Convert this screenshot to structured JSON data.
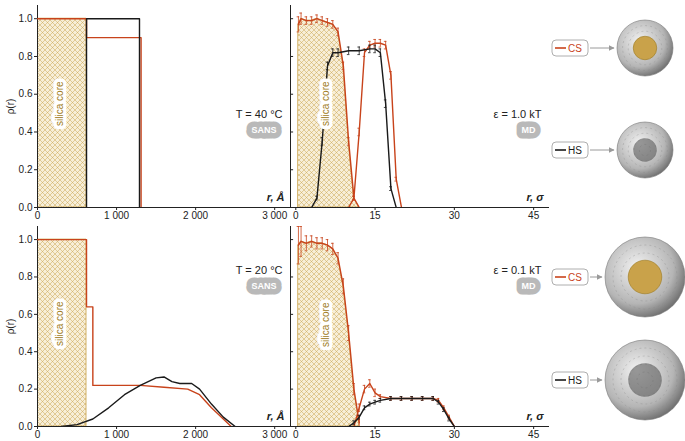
{
  "chart_data": [
    {
      "type": "line",
      "x_label": "r, Å",
      "y_label": "ρ(r)",
      "xlim": [
        0,
        3200
      ],
      "xticks": [
        0,
        {
          "value": 1000,
          "label": "1 000"
        },
        {
          "value": 2000,
          "label": "2 000"
        },
        {
          "value": 3000,
          "label": "3 000"
        }
      ],
      "ylim": [
        0,
        1.07
      ],
      "yticks": [
        {
          "value": 0,
          "label": "0.0"
        },
        0.2,
        0.4,
        0.6,
        0.8,
        {
          "value": 1,
          "label": "1.0"
        }
      ],
      "annotations": {
        "condition": "T = 40 °C",
        "method": "SANS",
        "core": "silica core"
      },
      "core": {
        "color": "#c9a24a",
        "x": [
          0,
          620
        ],
        "values": [
          1,
          1
        ]
      },
      "series": [
        {
          "name": "CS",
          "color": "#c8431b",
          "x": [
            0,
            620,
            620,
            1310,
            1310
          ],
          "values": [
            1,
            1,
            0.9,
            0.9,
            0
          ]
        },
        {
          "name": "HS",
          "color": "#1a1a1a",
          "x": [
            620,
            620,
            1290,
            1290
          ],
          "values": [
            0,
            1,
            1,
            0
          ]
        }
      ]
    },
    {
      "type": "line",
      "x_label": "r, σ",
      "y_label": null,
      "tick_labels": "x",
      "legend": "right",
      "xlim": [
        -1,
        48
      ],
      "xticks": [
        0,
        15,
        30,
        45
      ],
      "ylim": [
        0,
        1.07
      ],
      "yticks": [
        0,
        0.2,
        0.4,
        0.6,
        0.8,
        1
      ],
      "annotations": {
        "condition": "ε = 1.0 kT",
        "method": "MD",
        "core": "silica core"
      },
      "core": {
        "color": "#c9a24a",
        "x": [
          0.5,
          1,
          2,
          3,
          4,
          5,
          6,
          7,
          8,
          9,
          10,
          11,
          12
        ],
        "values": [
          0.97,
          1.0,
          0.99,
          0.99,
          1.0,
          0.99,
          0.98,
          0.97,
          0.93,
          0.75,
          0.35,
          0.05,
          0
        ]
      },
      "series": [
        {
          "name": "CS",
          "color": "#c8431b",
          "x": [
            0.5,
            1,
            2,
            3,
            4,
            5,
            6,
            7,
            8,
            9,
            10,
            11,
            12,
            null,
            10,
            11,
            12,
            13,
            14,
            15,
            16,
            17,
            18,
            19,
            20
          ],
          "values": [
            0.97,
            1.0,
            0.99,
            0.99,
            1.0,
            0.99,
            0.98,
            0.97,
            0.93,
            0.75,
            0.35,
            0.05,
            0,
            null,
            0,
            0.05,
            0.4,
            0.82,
            0.86,
            0.87,
            0.87,
            0.86,
            0.7,
            0.15,
            0
          ],
          "errors": [
            0.04,
            0.03,
            0.02,
            0.02,
            0.02,
            0.02,
            0.02,
            0.02,
            0.02,
            0.02,
            0.02,
            0.01,
            0,
            null,
            0,
            0.01,
            0.02,
            0.02,
            0.02,
            0.02,
            0.02,
            0.02,
            0.02,
            0.01,
            0
          ]
        },
        {
          "name": "HS",
          "color": "#1a1a1a",
          "x": [
            3,
            4,
            5,
            6,
            7,
            8,
            10,
            12,
            14,
            15,
            16,
            17,
            18,
            19
          ],
          "values": [
            0,
            0.05,
            0.35,
            0.75,
            0.82,
            0.82,
            0.83,
            0.83,
            0.84,
            0.84,
            0.82,
            0.55,
            0.1,
            0
          ],
          "errors": [
            0,
            0.01,
            0.02,
            0.02,
            0.02,
            0.02,
            0.02,
            0.02,
            0.02,
            0.02,
            0.02,
            0.02,
            0.01,
            0
          ]
        }
      ]
    },
    {
      "type": "line",
      "x_label": "r, Å",
      "y_label": "ρ(r)",
      "xlim": [
        0,
        3200
      ],
      "xticks": [
        0,
        {
          "value": 1000,
          "label": "1 000"
        },
        {
          "value": 2000,
          "label": "2 000"
        },
        {
          "value": 3000,
          "label": "3 000"
        }
      ],
      "ylim": [
        0,
        1.07
      ],
      "yticks": [
        {
          "value": 0,
          "label": "0.0"
        },
        0.2,
        0.4,
        0.6,
        0.8,
        {
          "value": 1,
          "label": "1.0"
        }
      ],
      "annotations": {
        "condition": "T = 20 °C",
        "method": "SANS",
        "core": "silica core"
      },
      "core": {
        "color": "#c9a24a",
        "x": [
          0,
          620
        ],
        "values": [
          1,
          1
        ]
      },
      "series": [
        {
          "name": "CS",
          "color": "#c8431b",
          "x": [
            0,
            620,
            620,
            700,
            700,
            1000,
            1300,
            1600,
            1900,
            2050,
            2200,
            2350,
            2450
          ],
          "values": [
            1,
            1,
            0.64,
            0.64,
            0.22,
            0.22,
            0.22,
            0.21,
            0.2,
            0.17,
            0.1,
            0.04,
            0
          ]
        },
        {
          "name": "HS",
          "color": "#1a1a1a",
          "x": [
            300,
            500,
            700,
            900,
            1100,
            1300,
            1500,
            1600,
            1700,
            1800,
            1950,
            2050,
            2200,
            2350,
            2500
          ],
          "values": [
            0,
            0.01,
            0.04,
            0.1,
            0.17,
            0.22,
            0.26,
            0.265,
            0.24,
            0.23,
            0.23,
            0.2,
            0.12,
            0.05,
            0
          ]
        }
      ]
    },
    {
      "type": "line",
      "x_label": "r, σ",
      "y_label": null,
      "tick_labels": "x",
      "legend": "right",
      "xlim": [
        -1,
        48
      ],
      "xticks": [
        0,
        15,
        30,
        45
      ],
      "ylim": [
        0,
        1.07
      ],
      "yticks": [
        0,
        0.2,
        0.4,
        0.6,
        0.8,
        1
      ],
      "annotations": {
        "condition": "ε = 0.1 kT",
        "method": "MD",
        "core": "silica core"
      },
      "core": {
        "color": "#c9a24a",
        "x": [
          0.5,
          1,
          2,
          3,
          4,
          5,
          6,
          7,
          8,
          9,
          10,
          11,
          12
        ],
        "values": [
          0.97,
          0.99,
          0.98,
          0.99,
          0.98,
          0.98,
          0.97,
          0.95,
          0.9,
          0.75,
          0.5,
          0.2,
          0.02
        ]
      },
      "series": [
        {
          "name": "CS",
          "color": "#c8431b",
          "x": [
            0.5,
            1,
            2,
            3,
            4,
            5,
            6,
            7,
            8,
            9,
            10,
            11,
            12,
            null,
            11,
            12,
            13,
            14,
            15,
            16,
            18,
            20,
            22,
            24,
            26,
            27,
            28,
            29,
            30
          ],
          "values": [
            0.97,
            0.99,
            0.98,
            0.99,
            0.98,
            0.98,
            0.97,
            0.95,
            0.9,
            0.75,
            0.5,
            0.2,
            0.02,
            null,
            0,
            0.1,
            0.2,
            0.23,
            0.18,
            0.16,
            0.15,
            0.15,
            0.15,
            0.15,
            0.15,
            0.14,
            0.1,
            0.05,
            0
          ],
          "errors": [
            0.1,
            0.08,
            0.04,
            0.03,
            0.03,
            0.03,
            0.03,
            0.03,
            0.03,
            0.04,
            0.04,
            0.03,
            0.02,
            null,
            0,
            0.02,
            0.02,
            0.02,
            0.02,
            0.01,
            0.01,
            0.01,
            0.01,
            0.01,
            0.01,
            0.01,
            0.01,
            0.01,
            0
          ]
        },
        {
          "name": "HS",
          "color": "#1a1a1a",
          "x": [
            10,
            11,
            12,
            13,
            14,
            15,
            16,
            18,
            20,
            22,
            24,
            26,
            27,
            28,
            29,
            30
          ],
          "values": [
            0,
            0.02,
            0.05,
            0.1,
            0.12,
            0.13,
            0.14,
            0.15,
            0.15,
            0.15,
            0.15,
            0.15,
            0.13,
            0.09,
            0.04,
            0
          ],
          "errors": [
            0,
            0.01,
            0.01,
            0.01,
            0.01,
            0.01,
            0.01,
            0.01,
            0.01,
            0.01,
            0.01,
            0.01,
            0.01,
            0.01,
            0.01,
            0
          ]
        }
      ]
    }
  ]
}
